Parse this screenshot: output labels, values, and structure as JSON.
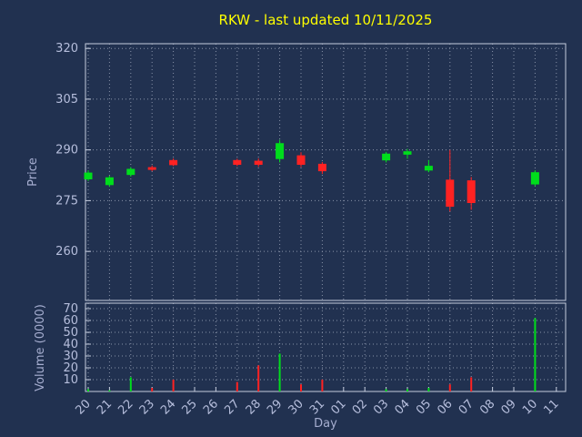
{
  "title": "RKW - last updated 10/11/2025",
  "chart_data": {
    "type": "candlestick_with_volume",
    "title": "RKW - last updated 10/11/2025",
    "xlabel": "Day",
    "price_axis": {
      "label": "Price",
      "ticks": [
        320,
        305,
        290,
        275,
        260
      ],
      "range": [
        245.5,
        321.4
      ]
    },
    "volume_axis": {
      "label": "Volume (0000)",
      "ticks": [
        70,
        60,
        50,
        40,
        30,
        20,
        10
      ],
      "range": [
        0,
        74.6
      ]
    },
    "days": [
      "20",
      "21",
      "22",
      "23",
      "24",
      "25",
      "26",
      "27",
      "28",
      "29",
      "30",
      "31",
      "01",
      "02",
      "03",
      "04",
      "05",
      "06",
      "07",
      "08",
      "09",
      "10",
      "11"
    ],
    "candles": [
      {
        "day": "20",
        "open": 281.3,
        "high": 284.0,
        "low": 280.8,
        "close": 283.3
      },
      {
        "day": "21",
        "open": 279.6,
        "high": 282.4,
        "low": 279.1,
        "close": 281.9
      },
      {
        "day": "22",
        "open": 282.6,
        "high": 284.9,
        "low": 282.1,
        "close": 284.4
      },
      {
        "day": "23",
        "open": 284.9,
        "high": 285.4,
        "low": 283.7,
        "close": 284.1
      },
      {
        "day": "24",
        "open": 287.0,
        "high": 287.5,
        "low": 285.2,
        "close": 285.5
      },
      {
        "day": "27",
        "open": 287.0,
        "high": 287.4,
        "low": 285.2,
        "close": 285.6
      },
      {
        "day": "28",
        "open": 286.8,
        "high": 287.5,
        "low": 285.0,
        "close": 285.6
      },
      {
        "day": "29",
        "open": 287.3,
        "high": 293.0,
        "low": 286.3,
        "close": 292.0
      },
      {
        "day": "30",
        "open": 288.4,
        "high": 289.3,
        "low": 284.9,
        "close": 285.6
      },
      {
        "day": "31",
        "open": 285.9,
        "high": 286.4,
        "low": 282.9,
        "close": 283.7
      },
      {
        "day": "03",
        "open": 286.9,
        "high": 289.4,
        "low": 286.3,
        "close": 288.9
      },
      {
        "day": "04",
        "open": 288.6,
        "high": 290.3,
        "low": 287.4,
        "close": 289.6
      },
      {
        "day": "05",
        "open": 283.9,
        "high": 287.0,
        "low": 283.4,
        "close": 285.3
      },
      {
        "day": "06",
        "open": 281.2,
        "high": 290.0,
        "low": 271.8,
        "close": 273.2
      },
      {
        "day": "07",
        "open": 281.0,
        "high": 282.0,
        "low": 272.3,
        "close": 274.3
      },
      {
        "day": "10",
        "open": 279.8,
        "high": 284.0,
        "low": 279.3,
        "close": 283.4
      }
    ],
    "volumes": [
      {
        "day": "20",
        "value": 2
      },
      {
        "day": "21",
        "value": 1
      },
      {
        "day": "22",
        "value": 12
      },
      {
        "day": "23",
        "value": 3
      },
      {
        "day": "24",
        "value": 10
      },
      {
        "day": "27",
        "value": 8
      },
      {
        "day": "28",
        "value": 22
      },
      {
        "day": "29",
        "value": 32
      },
      {
        "day": "30",
        "value": 6
      },
      {
        "day": "31",
        "value": 10
      },
      {
        "day": "03",
        "value": 2
      },
      {
        "day": "04",
        "value": 2
      },
      {
        "day": "05",
        "value": 3
      },
      {
        "day": "06",
        "value": 6
      },
      {
        "day": "07",
        "value": 12
      },
      {
        "day": "10",
        "value": 62
      }
    ],
    "colors": {
      "up": "#00dd1c",
      "down": "#ff2222",
      "title": "#ffff00",
      "axis_text": "#a6aed0",
      "tick_text": "#b6bedc",
      "grid": "#8892a8",
      "border": "#c5cdde",
      "background": "#213150"
    },
    "legend": "none",
    "grid": "dotted"
  }
}
